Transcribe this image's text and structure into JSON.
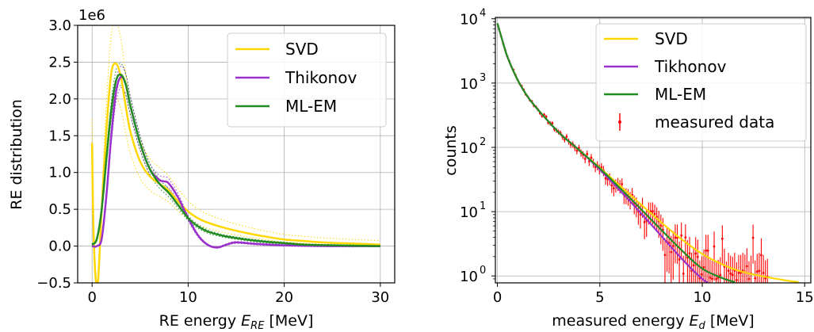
{
  "chart_data": [
    {
      "type": "line",
      "xlabel": "RE energy",
      "xlabel_sym": "E",
      "xlabel_sub": "RE",
      "xlabel_unit": "[MeV]",
      "ylabel": "RE distribution",
      "offset_text": "1e6",
      "xlim": [
        -1.5,
        31.5
      ],
      "ylim": [
        -0.5,
        3.0
      ],
      "xticks": [
        0,
        10,
        20,
        30
      ],
      "yticks": [
        -0.5,
        0.0,
        0.5,
        1.0,
        1.5,
        2.0,
        2.5,
        3.0
      ],
      "ytick_labels": [
        "−0.5",
        "0.0",
        "0.5",
        "1.0",
        "1.5",
        "2.0",
        "2.5",
        "3.0"
      ],
      "grid": true,
      "legend_position": "upper right",
      "series": [
        {
          "name": "SVD",
          "color": "#ffd700",
          "x": [
            0,
            0.1,
            0.3,
            0.6,
            1.0,
            1.5,
            2.0,
            2.5,
            3.0,
            3.5,
            4.0,
            5.0,
            6.0,
            7.0,
            8.0,
            9.0,
            10.0,
            11.0,
            12.0,
            14.0,
            16.0,
            18.0,
            20.0,
            22.0,
            24.0,
            26.0,
            28.0,
            30.0
          ],
          "y": [
            1.4,
            0.5,
            -0.3,
            -0.5,
            0.5,
            1.6,
            2.35,
            2.48,
            2.3,
            1.9,
            1.55,
            1.15,
            0.95,
            0.85,
            0.75,
            0.6,
            0.47,
            0.38,
            0.32,
            0.24,
            0.18,
            0.13,
            0.09,
            0.07,
            0.05,
            0.04,
            0.03,
            0.02
          ]
        },
        {
          "name": "Thikonov",
          "color": "#9932cc",
          "x": [
            0,
            0.5,
            1.0,
            1.5,
            2.0,
            2.5,
            3.0,
            3.5,
            4.0,
            5.0,
            6.0,
            7.0,
            7.5,
            8.0,
            9.0,
            10.0,
            11.0,
            12.0,
            13.0,
            14.0,
            15.0,
            17.0,
            20.0,
            25.0,
            30.0
          ],
          "y": [
            0.0,
            0.0,
            0.1,
            0.7,
            1.5,
            2.1,
            2.3,
            2.2,
            1.9,
            1.4,
            1.05,
            0.9,
            0.88,
            0.85,
            0.65,
            0.38,
            0.15,
            0.02,
            -0.02,
            0.02,
            0.05,
            0.03,
            0.01,
            0.0,
            0.0
          ]
        },
        {
          "name": "ML-EM",
          "color": "#228b22",
          "x": [
            0,
            0.5,
            1.0,
            1.5,
            2.0,
            2.5,
            3.0,
            3.5,
            4.0,
            5.0,
            6.0,
            7.0,
            8.0,
            9.0,
            10.0,
            11.0,
            12.0,
            13.0,
            14.0,
            16.0,
            18.0,
            20.0,
            22.0,
            25.0,
            30.0
          ],
          "y": [
            0.02,
            0.1,
            0.5,
            1.2,
            1.85,
            2.25,
            2.33,
            2.2,
            1.9,
            1.4,
            1.05,
            0.85,
            0.72,
            0.55,
            0.38,
            0.27,
            0.2,
            0.16,
            0.13,
            0.09,
            0.06,
            0.04,
            0.02,
            0.01,
            0.0
          ]
        }
      ]
    },
    {
      "type": "line",
      "yscale": "log",
      "xlabel": "measured energy",
      "xlabel_sym": "E",
      "xlabel_sub": "d",
      "xlabel_unit": "[MeV]",
      "ylabel": "counts",
      "xlim": [
        -0.1,
        15.3
      ],
      "ylim": [
        0.78,
        10500
      ],
      "xticks": [
        0,
        5,
        10,
        15
      ],
      "yticks": [
        1,
        10,
        100,
        1000,
        10000
      ],
      "ytick_labels": [
        "10",
        "10",
        "10",
        "10",
        "10"
      ],
      "ytick_exponents": [
        "0",
        "1",
        "2",
        "3",
        "4"
      ],
      "grid": true,
      "legend_position": "upper right",
      "series": [
        {
          "name": "SVD",
          "color": "#ffd700",
          "x": [
            0,
            0.25,
            0.5,
            1,
            1.5,
            2,
            3,
            4,
            5,
            6,
            7,
            8,
            9,
            10,
            11,
            12,
            13,
            14,
            14.7
          ],
          "y": [
            8500,
            4500,
            2500,
            1100,
            600,
            380,
            170,
            90,
            48,
            25,
            13,
            6.8,
            3.7,
            2.2,
            1.5,
            1.15,
            0.98,
            0.86,
            0.8
          ]
        },
        {
          "name": "Tikhonov",
          "color": "#9932cc",
          "x": [
            0,
            0.25,
            0.5,
            1,
            1.5,
            2,
            3,
            4,
            5,
            6,
            7,
            8,
            9,
            10,
            10.5
          ],
          "y": [
            8500,
            4500,
            2500,
            1100,
            600,
            380,
            170,
            90,
            45,
            21,
            9.5,
            4.2,
            1.85,
            0.9,
            0.72
          ]
        },
        {
          "name": "ML-EM",
          "color": "#228b22",
          "x": [
            0,
            0.25,
            0.5,
            1,
            1.5,
            2,
            3,
            4,
            5,
            6,
            7,
            8,
            9,
            10,
            11,
            11.6
          ],
          "y": [
            8500,
            4500,
            2500,
            1100,
            600,
            380,
            170,
            90,
            47,
            23,
            11,
            5.2,
            2.5,
            1.3,
            0.92,
            0.8
          ]
        },
        {
          "name": "measured data",
          "color": "#ff0000",
          "kind": "errorbar"
        }
      ]
    }
  ]
}
